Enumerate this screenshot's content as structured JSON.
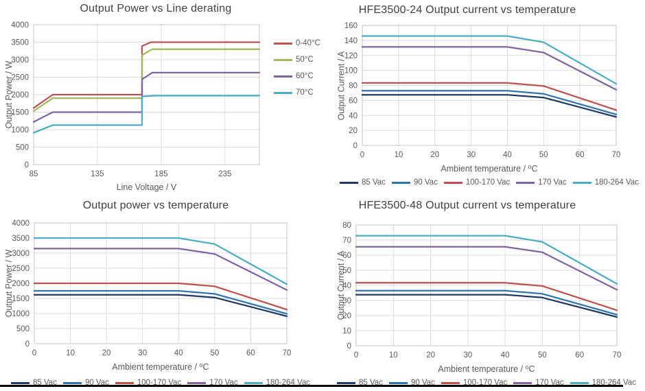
{
  "page": {
    "background": "#ffffff",
    "footer_rule_color": "#000000"
  },
  "palette": {
    "series_navy": "#1F3864",
    "series_blue": "#2E74B5",
    "series_red": "#C0504D",
    "series_green": "#9BBB59",
    "series_purple": "#8064A2",
    "series_teal": "#4BACC6",
    "title_text": "#404040",
    "axis_text": "#595959",
    "gridline": "#DBDBDB",
    "plot_border": "#C6C6C6"
  },
  "chart_data": [
    {
      "type": "line",
      "title": "Output Power vs Line derating",
      "xlabel": "Line Voltage / V",
      "ylabel": "Output Power / W",
      "xlim": [
        85,
        262
      ],
      "ylim": [
        0,
        4000
      ],
      "xticks": [
        85,
        135,
        185,
        235
      ],
      "yticks": [
        0,
        500,
        1000,
        1500,
        2000,
        2500,
        3000,
        3500,
        4000
      ],
      "grid": true,
      "legend_position": "right",
      "series": [
        {
          "name": "0-40°C",
          "color": "series_red",
          "points": [
            [
              85,
              1620
            ],
            [
              100,
              2000
            ],
            [
              170,
              2000
            ],
            [
              170,
              3390
            ],
            [
              177,
              3500
            ],
            [
              262,
              3500
            ]
          ]
        },
        {
          "name": "50°C",
          "color": "series_green",
          "points": [
            [
              85,
              1530
            ],
            [
              100,
              1900
            ],
            [
              170,
              1900
            ],
            [
              170,
              3130
            ],
            [
              178,
              3300
            ],
            [
              262,
              3300
            ]
          ]
        },
        {
          "name": "60°C",
          "color": "series_purple",
          "points": [
            [
              85,
              1220
            ],
            [
              100,
              1500
            ],
            [
              170,
              1500
            ],
            [
              170,
              2440
            ],
            [
              178,
              2630
            ],
            [
              262,
              2630
            ]
          ]
        },
        {
          "name": "70°C",
          "color": "series_teal",
          "points": [
            [
              85,
              910
            ],
            [
              100,
              1130
            ],
            [
              170,
              1130
            ],
            [
              170,
              1950
            ],
            [
              180,
              1970
            ],
            [
              262,
              1970
            ]
          ]
        }
      ]
    },
    {
      "type": "line",
      "title": "HFE3500-24 Output current vs temperature",
      "xlabel": "Ambient temperature / ⁰C",
      "ylabel": "Output Current / A",
      "xlim": [
        0,
        70
      ],
      "ylim": [
        0,
        160
      ],
      "xticks": [
        0,
        10,
        20,
        30,
        40,
        50,
        60,
        70
      ],
      "yticks": [
        0,
        20,
        40,
        60,
        80,
        100,
        120,
        140,
        160
      ],
      "grid": true,
      "legend_position": "bottom",
      "series": [
        {
          "name": "85 Vac",
          "color": "series_navy",
          "points": [
            [
              0,
              67.5
            ],
            [
              40,
              67.5
            ],
            [
              50,
              63.8
            ],
            [
              70,
              37.9
            ]
          ]
        },
        {
          "name": "90 Vac",
          "color": "series_blue",
          "points": [
            [
              0,
              72.9
            ],
            [
              40,
              72.9
            ],
            [
              50,
              68.8
            ],
            [
              70,
              41.3
            ]
          ]
        },
        {
          "name": "100-170 Vac",
          "color": "series_red",
          "points": [
            [
              0,
              83.3
            ],
            [
              40,
              83.3
            ],
            [
              50,
              79.2
            ],
            [
              70,
              47.1
            ]
          ]
        },
        {
          "name": "170 Vac",
          "color": "series_purple",
          "points": [
            [
              0,
              131.3
            ],
            [
              40,
              131.3
            ],
            [
              50,
              123.8
            ],
            [
              70,
              74.2
            ]
          ]
        },
        {
          "name": "180-264 Vac",
          "color": "series_teal",
          "points": [
            [
              0,
              145.8
            ],
            [
              40,
              145.8
            ],
            [
              50,
              137.5
            ],
            [
              70,
              82.1
            ]
          ]
        }
      ]
    },
    {
      "type": "line",
      "title": "Output power vs temperature",
      "xlabel": "Ambient temperature / ⁰C",
      "ylabel": "Output Power / W",
      "xlim": [
        0,
        70
      ],
      "ylim": [
        0,
        4000
      ],
      "xticks": [
        0,
        10,
        20,
        30,
        40,
        50,
        60,
        70
      ],
      "yticks": [
        0,
        500,
        1000,
        1500,
        2000,
        2500,
        3000,
        3500,
        4000
      ],
      "grid": true,
      "legend_position": "bottom",
      "series": [
        {
          "name": "85 Vac",
          "color": "series_navy",
          "points": [
            [
              0,
              1620
            ],
            [
              40,
              1620
            ],
            [
              50,
              1530
            ],
            [
              70,
              910
            ]
          ]
        },
        {
          "name": "90 Vac",
          "color": "series_blue",
          "points": [
            [
              0,
              1750
            ],
            [
              40,
              1750
            ],
            [
              50,
              1650
            ],
            [
              70,
              990
            ]
          ]
        },
        {
          "name": "100-170 Vac",
          "color": "series_red",
          "points": [
            [
              0,
              2000
            ],
            [
              40,
              2000
            ],
            [
              50,
              1900
            ],
            [
              70,
              1130
            ]
          ]
        },
        {
          "name": "170 Vac",
          "color": "series_purple",
          "points": [
            [
              0,
              3150
            ],
            [
              40,
              3150
            ],
            [
              50,
              2970
            ],
            [
              70,
              1780
            ]
          ]
        },
        {
          "name": "180-264 Vac",
          "color": "series_teal",
          "points": [
            [
              0,
              3500
            ],
            [
              40,
              3500
            ],
            [
              50,
              3300
            ],
            [
              70,
              1970
            ]
          ]
        }
      ]
    },
    {
      "type": "line",
      "title": "HFE3500-48 Output current vs temperature",
      "xlabel": "Ambient temperature / ⁰C",
      "ylabel": "Output Current / A",
      "xlim": [
        0,
        70
      ],
      "ylim": [
        0,
        80
      ],
      "xticks": [
        0,
        10,
        20,
        30,
        40,
        50,
        60,
        70
      ],
      "yticks": [
        0,
        10,
        20,
        30,
        40,
        50,
        60,
        70,
        80
      ],
      "grid": true,
      "legend_position": "bottom",
      "series": [
        {
          "name": "85 Vac",
          "color": "series_navy",
          "points": [
            [
              0,
              33.8
            ],
            [
              40,
              33.8
            ],
            [
              50,
              31.9
            ],
            [
              70,
              19
            ]
          ]
        },
        {
          "name": "90 Vac",
          "color": "series_blue",
          "points": [
            [
              0,
              36.5
            ],
            [
              40,
              36.5
            ],
            [
              50,
              34.4
            ],
            [
              70,
              20.6
            ]
          ]
        },
        {
          "name": "100-170 Vac",
          "color": "series_red",
          "points": [
            [
              0,
              41.7
            ],
            [
              40,
              41.7
            ],
            [
              50,
              39.6
            ],
            [
              70,
              23.5
            ]
          ]
        },
        {
          "name": "170 Vac",
          "color": "series_purple",
          "points": [
            [
              0,
              65.6
            ],
            [
              40,
              65.6
            ],
            [
              50,
              61.9
            ],
            [
              70,
              37.1
            ]
          ]
        },
        {
          "name": "180-264 Vac",
          "color": "series_teal",
          "points": [
            [
              0,
              72.9
            ],
            [
              40,
              72.9
            ],
            [
              50,
              68.8
            ],
            [
              70,
              41
            ]
          ]
        }
      ]
    }
  ]
}
